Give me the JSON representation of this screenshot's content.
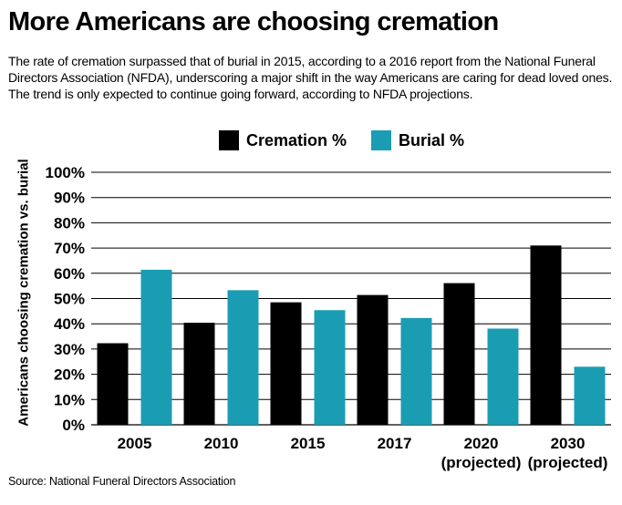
{
  "title": "More Americans are choosing cremation",
  "subtitle": "The rate of cremation surpassed that of burial in 2015, according to a 2016 report from the National Funeral Directors Association (NFDA), underscoring a major shift in the way Americans are caring for dead loved ones. The trend is only expected to continue going forward, according to NFDA projections.",
  "source": "Source: National Funeral Directors Association",
  "colors": {
    "cremation": "#000000",
    "burial": "#1a9db3",
    "grid": "#000000"
  },
  "chart_data": {
    "type": "bar",
    "title": "More Americans are choosing cremation",
    "xlabel": "",
    "ylabel": "Americans choosing cremation vs. burial",
    "ylim": [
      0,
      100
    ],
    "yticks": [
      "0%",
      "10%",
      "20%",
      "30%",
      "40%",
      "50%",
      "60%",
      "70%",
      "80%",
      "90%",
      "100%"
    ],
    "categories": [
      [
        "2005"
      ],
      [
        "2010"
      ],
      [
        "2015"
      ],
      [
        "2017"
      ],
      [
        "2020",
        "(projected)"
      ],
      [
        "2030",
        "(projected)"
      ]
    ],
    "series": [
      {
        "name": "Cremation %",
        "color": "#000000",
        "values": [
          32.3,
          40.4,
          48.5,
          51.4,
          56.1,
          71.0
        ]
      },
      {
        "name": "Burial %",
        "color": "#1a9db3",
        "values": [
          61.4,
          53.3,
          45.4,
          42.3,
          38.1,
          23.0
        ]
      }
    ],
    "legend_position": "top-center",
    "grid": true
  }
}
